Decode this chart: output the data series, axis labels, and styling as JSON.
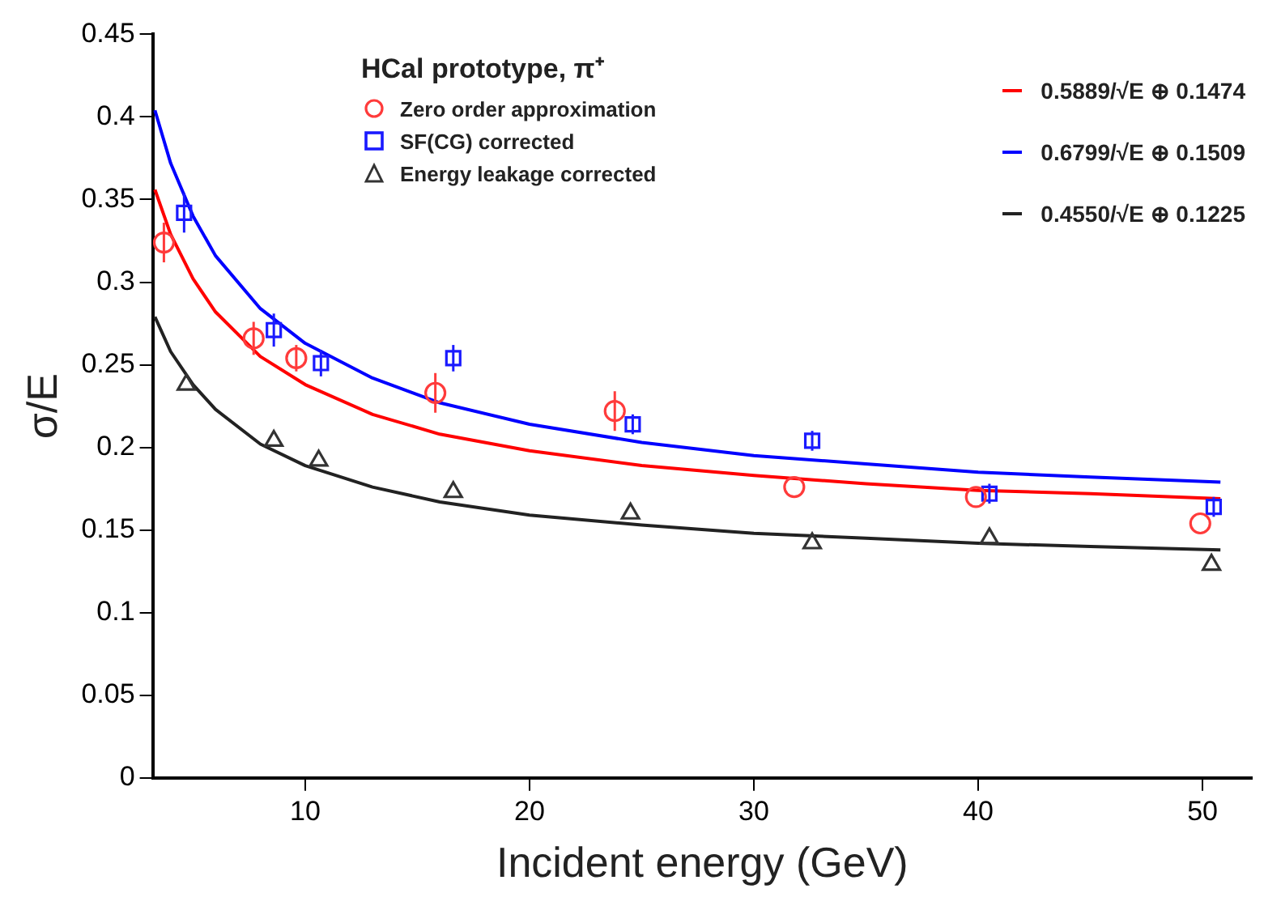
{
  "chart_data": {
    "type": "scatter",
    "xlabel": "Incident energy (GeV)",
    "ylabel": "σ/E",
    "legend_title": "HCal prototype, π⁺",
    "legend": "top",
    "grid": false,
    "xlim": [
      3.2,
      52.2
    ],
    "xticks": [
      10,
      20,
      30,
      40,
      50
    ],
    "ylim": [
      0,
      0.45
    ],
    "yticks": [
      0,
      0.05,
      0.1,
      0.15,
      0.2,
      0.25,
      0.3,
      0.35,
      0.4,
      0.45
    ],
    "series": [
      {
        "name": "Zero order approximation",
        "marker": "circle",
        "color": "#ff3b3b",
        "x": [
          3.7,
          7.7,
          9.6,
          15.8,
          23.8,
          31.8,
          39.9,
          49.9
        ],
        "values": [
          0.324,
          0.266,
          0.254,
          0.233,
          0.222,
          0.176,
          0.17,
          0.154
        ],
        "errors": [
          0.012,
          0.01,
          0.008,
          0.012,
          0.012,
          null,
          null,
          null
        ]
      },
      {
        "name": "SF(CG) corrected",
        "marker": "square",
        "color": "#1a1aff",
        "x": [
          4.6,
          8.6,
          10.7,
          16.6,
          24.6,
          32.6,
          40.5,
          50.5
        ],
        "values": [
          0.342,
          0.271,
          0.251,
          0.254,
          0.214,
          0.204,
          0.172,
          0.164
        ],
        "errors": [
          0.012,
          0.01,
          0.008,
          0.008,
          0.006,
          0.006,
          0.006,
          0.006
        ]
      },
      {
        "name": "Energy leakage corrected",
        "marker": "triangle",
        "color": "#333333",
        "x": [
          4.7,
          8.6,
          10.6,
          16.6,
          24.5,
          32.6,
          40.5,
          50.4
        ],
        "values": [
          0.238,
          0.204,
          0.192,
          0.173,
          0.16,
          0.142,
          0.145,
          0.129
        ]
      },
      {
        "name": "0.5889/√E ⊕ 0.1474",
        "type": "line",
        "marker": "none",
        "line_style": "solid",
        "color": "#ff0000",
        "x": [
          3.3,
          4,
          5,
          6,
          8,
          10,
          13,
          16,
          20,
          25,
          30,
          35,
          40,
          45,
          50.8
        ],
        "values": [
          0.356,
          0.329,
          0.302,
          0.282,
          0.255,
          0.238,
          0.22,
          0.208,
          0.198,
          0.189,
          0.183,
          0.178,
          0.174,
          0.172,
          0.169
        ]
      },
      {
        "name": "0.6799/√E ⊕ 0.1509",
        "type": "line",
        "marker": "none",
        "line_style": "solid",
        "color": "#0000ff",
        "x": [
          3.3,
          4,
          5,
          6,
          8,
          10,
          13,
          16,
          20,
          25,
          30,
          35,
          40,
          45,
          50.8
        ],
        "values": [
          0.404,
          0.372,
          0.34,
          0.316,
          0.284,
          0.263,
          0.242,
          0.227,
          0.214,
          0.203,
          0.195,
          0.19,
          0.185,
          0.182,
          0.179
        ]
      },
      {
        "name": "0.4550/√E ⊕ 0.1225",
        "type": "line",
        "marker": "none",
        "line_style": "solid",
        "color": "#222222",
        "x": [
          3.3,
          4,
          5,
          6,
          8,
          10,
          13,
          16,
          20,
          25,
          30,
          35,
          40,
          45,
          50.8
        ],
        "values": [
          0.279,
          0.258,
          0.238,
          0.223,
          0.202,
          0.189,
          0.176,
          0.167,
          0.159,
          0.153,
          0.148,
          0.145,
          0.142,
          0.14,
          0.138
        ]
      }
    ]
  }
}
